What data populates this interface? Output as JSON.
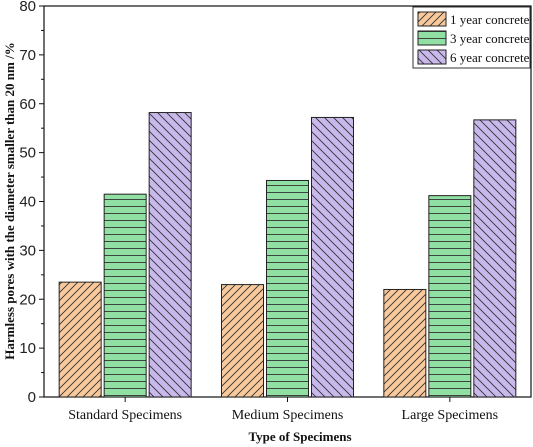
{
  "chart_data": {
    "type": "bar",
    "title": "",
    "xlabel": "Type of Specimens",
    "ylabel": "Harmless pores with the diameter smaller than 20 nm /%",
    "ylim": [
      0,
      80
    ],
    "yticks": [
      0,
      10,
      20,
      30,
      40,
      50,
      60,
      70,
      80
    ],
    "categories": [
      "Standard Specimens",
      "Medium Specimens",
      "Large Specimens"
    ],
    "series": [
      {
        "name": "1 year concrete",
        "values": [
          23.5,
          23.0,
          22.0
        ],
        "color": "#f9c99c",
        "pattern": "diagonal-up"
      },
      {
        "name": "3 year concrete",
        "values": [
          41.5,
          44.3,
          41.2
        ],
        "color": "#8fe0a2",
        "pattern": "horizontal"
      },
      {
        "name": "6 year concrete",
        "values": [
          58.2,
          57.2,
          56.7
        ],
        "color": "#c8b8ec",
        "pattern": "diagonal-down"
      }
    ],
    "grid": false,
    "legend_position": "top-right"
  }
}
